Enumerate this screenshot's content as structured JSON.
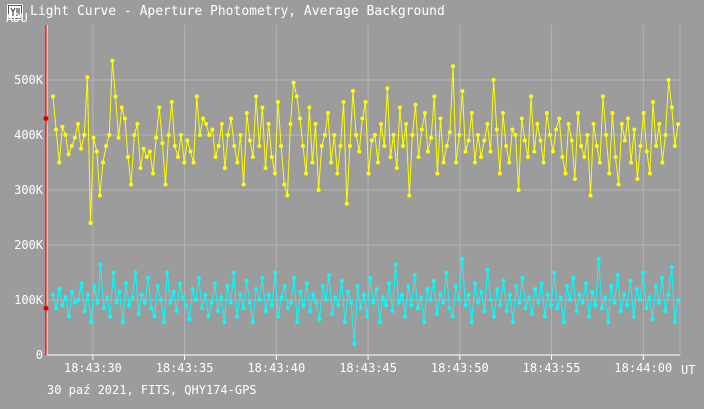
{
  "window": {
    "title": "Light Curve - Aperture Photometry, Average Background",
    "icon": "app-logo-icon"
  },
  "footer": {
    "caption": "30 paź 2021, FITS, QHY174-GPS"
  },
  "colors": {
    "background": "#9c9c9c",
    "grid": "#b4b4b4",
    "axis": "#ffffff",
    "cursor": "#e00000",
    "series_signal": "#ffff00",
    "series_background": "#00ffff"
  },
  "chart_data": {
    "type": "scatter",
    "ylabel": "ADU",
    "xlabel": "UT",
    "grid": true,
    "x_time_range": [
      "18:43:27.5",
      "18:44:02.0"
    ],
    "ylim": [
      0,
      600000
    ],
    "yticks": [
      "0",
      "100K",
      "200K",
      "300K",
      "400K",
      "500K"
    ],
    "xticks": [
      "18:43:30",
      "18:43:35",
      "18:43:40",
      "18:43:45",
      "18:43:50",
      "18:43:55",
      "18:44:00"
    ],
    "cursor_markers": [
      430000,
      85000
    ],
    "series": [
      {
        "color": "#ffff00",
        "approx_mean": 390000,
        "values": [
          470000,
          410000,
          350000,
          415000,
          400000,
          365000,
          380000,
          395000,
          420000,
          375000,
          400000,
          505000,
          240000,
          395000,
          370000,
          290000,
          350000,
          380000,
          400000,
          535000,
          470000,
          395000,
          450000,
          430000,
          360000,
          310000,
          400000,
          420000,
          340000,
          375000,
          360000,
          370000,
          330000,
          395000,
          450000,
          385000,
          310000,
          400000,
          460000,
          380000,
          360000,
          400000,
          350000,
          390000,
          370000,
          350000,
          470000,
          400000,
          430000,
          420000,
          400000,
          410000,
          360000,
          380000,
          420000,
          340000,
          400000,
          430000,
          380000,
          350000,
          400000,
          310000,
          440000,
          390000,
          360000,
          470000,
          380000,
          450000,
          340000,
          420000,
          360000,
          330000,
          460000,
          380000,
          310000,
          290000,
          420000,
          495000,
          470000,
          430000,
          380000,
          330000,
          450000,
          350000,
          420000,
          300000,
          380000,
          400000,
          440000,
          350000,
          400000,
          330000,
          380000,
          460000,
          275000,
          380000,
          480000,
          400000,
          370000,
          430000,
          460000,
          330000,
          390000,
          400000,
          350000,
          420000,
          380000,
          485000,
          360000,
          400000,
          340000,
          450000,
          380000,
          420000,
          290000,
          400000,
          455000,
          360000,
          410000,
          440000,
          370000,
          395000,
          470000,
          330000,
          430000,
          350000,
          380000,
          405000,
          525000,
          350000,
          400000,
          480000,
          370000,
          390000,
          440000,
          350000,
          400000,
          360000,
          390000,
          420000,
          370000,
          500000,
          410000,
          330000,
          440000,
          380000,
          350000,
          410000,
          400000,
          300000,
          430000,
          390000,
          360000,
          470000,
          370000,
          420000,
          390000,
          350000,
          440000,
          400000,
          370000,
          410000,
          430000,
          360000,
          330000,
          420000,
          390000,
          320000,
          440000,
          380000,
          360000,
          400000,
          290000,
          420000,
          380000,
          350000,
          470000,
          400000,
          330000,
          440000,
          360000,
          310000,
          420000,
          390000,
          430000,
          350000,
          410000,
          320000,
          380000,
          440000,
          370000,
          330000,
          460000,
          380000,
          420000,
          350000,
          400000,
          500000,
          450000,
          380000,
          420000
        ]
      },
      {
        "color": "#00ffff",
        "approx_mean": 100000,
        "values": [
          110000,
          85000,
          120000,
          90000,
          105000,
          70000,
          115000,
          95000,
          100000,
          130000,
          80000,
          110000,
          60000,
          125000,
          95000,
          165000,
          85000,
          105000,
          70000,
          150000,
          95000,
          115000,
          60000,
          130000,
          90000,
          105000,
          150000,
          75000,
          110000,
          95000,
          140000,
          85000,
          70000,
          125000,
          100000,
          60000,
          150000,
          95000,
          115000,
          80000,
          130000,
          105000,
          90000,
          65000,
          120000,
          100000,
          140000,
          85000,
          110000,
          70000,
          95000,
          130000,
          80000,
          105000,
          60000,
          125000,
          95000,
          150000,
          70000,
          110000,
          85000,
          135000,
          95000,
          60000,
          120000,
          100000,
          140000,
          80000,
          110000,
          90000,
          150000,
          70000,
          105000,
          125000,
          85000,
          95000,
          140000,
          60000,
          115000,
          90000,
          130000,
          80000,
          110000,
          95000,
          65000,
          125000,
          100000,
          145000,
          75000,
          105000,
          90000,
          135000,
          60000,
          115000,
          95000,
          20000,
          125000,
          85000,
          110000,
          70000,
          140000,
          95000,
          120000,
          60000,
          105000,
          90000,
          130000,
          80000,
          165000,
          95000,
          110000,
          70000,
          125000,
          90000,
          145000,
          85000,
          105000,
          60000,
          120000,
          100000,
          135000,
          75000,
          110000,
          95000,
          150000,
          85000,
          70000,
          125000,
          100000,
          175000,
          90000,
          110000,
          60000,
          130000,
          95000,
          115000,
          80000,
          155000,
          100000,
          70000,
          120000,
          90000,
          135000,
          80000,
          110000,
          60000,
          125000,
          95000,
          140000,
          85000,
          105000,
          75000,
          120000,
          95000,
          130000,
          70000,
          110000,
          90000,
          150000,
          85000,
          105000,
          60000,
          125000,
          100000,
          140000,
          80000,
          110000,
          95000,
          130000,
          70000,
          115000,
          90000,
          175000,
          85000,
          105000,
          60000,
          125000,
          95000,
          145000,
          80000,
          110000,
          90000,
          135000,
          70000,
          120000,
          100000,
          150000,
          85000,
          105000,
          65000,
          125000,
          95000,
          140000,
          80000,
          110000,
          160000,
          60000,
          100000
        ]
      }
    ]
  }
}
